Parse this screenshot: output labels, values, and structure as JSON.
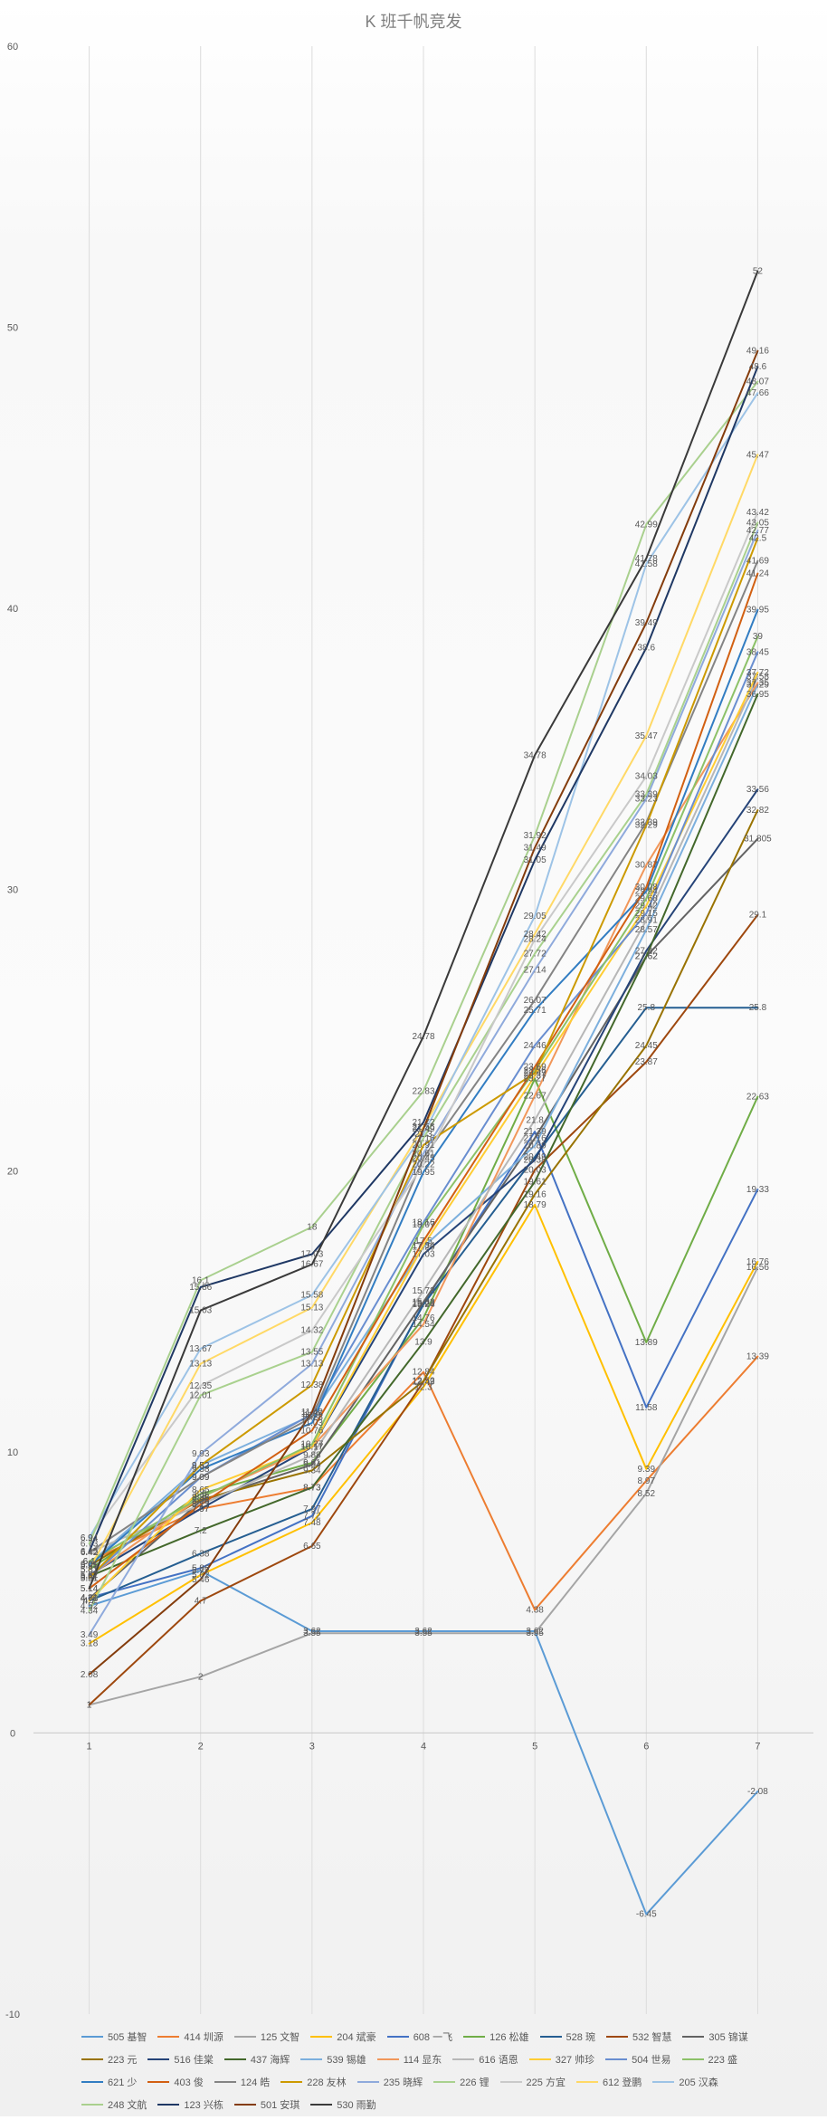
{
  "chart_data": {
    "type": "line",
    "title": "K 班千帆竞发",
    "xlabel": "",
    "ylabel": "",
    "ylim": [
      -10,
      60
    ],
    "yticks": [
      -10,
      0,
      10,
      20,
      30,
      40,
      50,
      60
    ],
    "x": [
      1,
      2,
      3,
      4,
      5,
      6,
      7
    ],
    "grid": "vertical",
    "legend_position": "bottom",
    "show_data_labels": true,
    "series": [
      {
        "name": "505 基智",
        "color": "#5b9bd5",
        "values": [
          4.52,
          5.77,
          3.62,
          3.62,
          3.62,
          -6.45,
          -2.08
        ]
      },
      {
        "name": "414 圳源",
        "color": "#ed7d31",
        "values": [
          6.1,
          7.97,
          8.73,
          12.84,
          4.38,
          8.97,
          13.39
        ]
      },
      {
        "name": "125 文智",
        "color": "#a5a5a5",
        "values": [
          1.0,
          2.0,
          3.55,
          3.55,
          3.55,
          8.52,
          16.56
        ]
      },
      {
        "name": "204 斌豪",
        "color": "#ffc000",
        "values": [
          3.18,
          5.62,
          7.48,
          12.3,
          18.79,
          9.39,
          16.76
        ]
      },
      {
        "name": "608 一飞",
        "color": "#4472c4",
        "values": [
          4.81,
          5.86,
          7.72,
          15.28,
          21.39,
          11.58,
          19.33
        ]
      },
      {
        "name": "126 松雄",
        "color": "#70ad47",
        "values": [
          5.81,
          8.5,
          9.61,
          14.76,
          23.27,
          13.89,
          22.63
        ]
      },
      {
        "name": "528 琬",
        "color": "#255e91",
        "values": [
          4.7,
          6.38,
          7.97,
          15.24,
          20.49,
          25.8,
          25.8
        ]
      },
      {
        "name": "532 智慧",
        "color": "#9e480e",
        "values": [
          1.0,
          4.7,
          6.65,
          12.49,
          20.03,
          23.87,
          29.1
        ]
      },
      {
        "name": "305 锦谋",
        "color": "#636363",
        "values": [
          4.78,
          8.25,
          9.54,
          15.33,
          21.16,
          27.62,
          31.805
        ]
      },
      {
        "name": "223 元",
        "color": "#997300",
        "values": [
          5.95,
          8.3,
          9.34,
          12.52,
          19.16,
          24.45,
          32.82
        ]
      },
      {
        "name": "516 佳棠",
        "color": "#264478",
        "values": [
          5.62,
          7.97,
          10.17,
          17.03,
          20.38,
          27.82,
          33.56
        ]
      },
      {
        "name": "437 海辉",
        "color": "#43682b",
        "values": [
          5.57,
          7.2,
          8.73,
          13.9,
          19.61,
          27.62,
          36.95
        ]
      },
      {
        "name": "539 锡雄",
        "color": "#7cafdd",
        "values": [
          6.01,
          9.52,
          11.3,
          17.29,
          20.89,
          28.57,
          37.29
        ]
      },
      {
        "name": "114 显东",
        "color": "#f1975a",
        "values": [
          5.57,
          8.38,
          10.17,
          14.54,
          22.67,
          30.87,
          37.35
        ]
      },
      {
        "name": "616 语恩",
        "color": "#b7b7b7",
        "values": [
          6.42,
          8.12,
          9.88,
          15.73,
          21.8,
          28.91,
          37.58
        ]
      },
      {
        "name": "327 帅珍",
        "color": "#ffcd33",
        "values": [
          4.7,
          8.65,
          10.17,
          17.34,
          23.37,
          29.42,
          37.72
        ]
      },
      {
        "name": "504 世易",
        "color": "#698ed0",
        "values": [
          5.51,
          9.09,
          11.35,
          18.16,
          24.46,
          29.15,
          38.45
        ]
      },
      {
        "name": "223 盛",
        "color": "#8cc168",
        "values": [
          6.1,
          8.38,
          10.27,
          18.07,
          23.56,
          29.68,
          39.0
        ]
      },
      {
        "name": "621 少",
        "color": "#327dc2",
        "values": [
          5.95,
          9.38,
          11.03,
          19.95,
          25.71,
          29.94,
          39.95
        ]
      },
      {
        "name": "403 俊",
        "color": "#d26012",
        "values": [
          5.14,
          8.12,
          10.76,
          17.5,
          23.69,
          30.08,
          41.24
        ]
      },
      {
        "name": "124 皓",
        "color": "#848484",
        "values": [
          6.42,
          9.09,
          11.23,
          20.45,
          26.07,
          32.39,
          41.69
        ]
      },
      {
        "name": "228 友林",
        "color": "#cc9a00",
        "values": [
          5.51,
          9.52,
          12.38,
          20.91,
          23.47,
          32.29,
          42.5
        ]
      },
      {
        "name": "235 晓辉",
        "color": "#8faadc",
        "values": [
          3.49,
          9.93,
          13.13,
          20.61,
          27.14,
          33.23,
          42.77
        ]
      },
      {
        "name": "226 锂",
        "color": "#a9d18e",
        "values": [
          4.34,
          12.01,
          13.55,
          21.16,
          27.72,
          33.39,
          43.05
        ]
      },
      {
        "name": "225 方宜",
        "color": "#c9c9c9",
        "values": [
          6.94,
          12.35,
          14.32,
          20.22,
          28.24,
          34.03,
          43.42
        ]
      },
      {
        "name": "612 登鹏",
        "color": "#ffd966",
        "values": [
          5.81,
          13.13,
          15.13,
          21.55,
          28.42,
          35.47,
          45.47
        ]
      },
      {
        "name": "205 汉森",
        "color": "#9dc3e6",
        "values": [
          6.94,
          13.67,
          15.58,
          21.3,
          29.05,
          41.58,
          47.66
        ]
      },
      {
        "name": "248 文航",
        "color": "#a9d08e",
        "values": [
          6.73,
          16.1,
          18.0,
          22.83,
          31.92,
          42.99,
          48.07
        ]
      },
      {
        "name": "123 兴栋",
        "color": "#1f3864",
        "values": [
          6.45,
          15.86,
          17.03,
          21.72,
          31.05,
          38.6,
          48.6
        ]
      },
      {
        "name": "501 安琪",
        "color": "#843c0c",
        "values": [
          2.08,
          5.46,
          11.42,
          21.49,
          31.49,
          39.49,
          49.16
        ]
      },
      {
        "name": "530 雨勤",
        "color": "#3a3a3a",
        "values": [
          5.14,
          15.03,
          16.67,
          24.78,
          34.78,
          41.78,
          52.0
        ]
      }
    ]
  }
}
